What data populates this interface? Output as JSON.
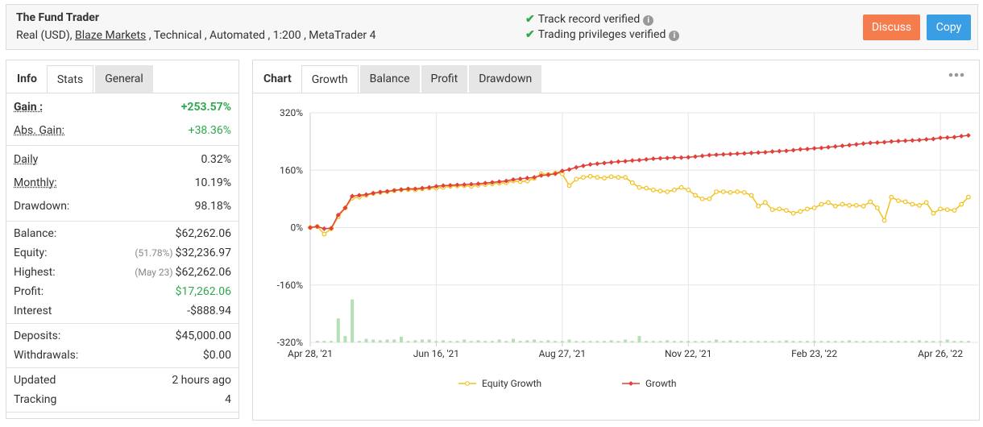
{
  "header": {
    "title": "The Fund Trader",
    "account": "Real (USD),",
    "broker": "Blaze Markets",
    "details": ", Technical , Automated , 1:200 , MetaTrader 4",
    "verified": [
      "Track record verified",
      "Trading privileges verified"
    ],
    "buttons": [
      "Discuss",
      "Copy"
    ]
  },
  "stats_panel": {
    "tabs": [
      "Info",
      "Stats",
      "General"
    ],
    "groups": [
      [
        {
          "label": "Gain :",
          "value": "+253.57%"
        },
        {
          "label": "Abs. Gain:",
          "value": "+38.36%"
        }
      ],
      [
        {
          "label": "Daily",
          "value": "0.32%"
        },
        {
          "label": "Monthly:",
          "value": "10.19%"
        },
        {
          "label": "Drawdown:",
          "value": "98.18%"
        }
      ],
      [
        {
          "label": "Balance:",
          "value": "$62,262.06"
        },
        {
          "label": "Equity:",
          "note": "(51.78%)",
          "value": "$32,236.97"
        },
        {
          "label": "Highest:",
          "note": "(May 23)",
          "value": "$62,262.06"
        },
        {
          "label": "Profit:",
          "value": "$17,262.06"
        },
        {
          "label": "Interest",
          "value": "-$888.94"
        }
      ],
      [
        {
          "label": "Deposits:",
          "value": "$45,000.00"
        },
        {
          "label": "Withdrawals:",
          "value": "$0.00"
        }
      ],
      [
        {
          "label": "Updated",
          "value": "2 hours ago"
        },
        {
          "label": "Tracking",
          "value": "4"
        }
      ]
    ]
  },
  "chart_panel": {
    "tabs": [
      "Chart",
      "Growth",
      "Balance",
      "Profit",
      "Drawdown"
    ]
  },
  "chart_data": {
    "type": "line",
    "categories": [
      "Apr 28, '21",
      null,
      null,
      null,
      null,
      null,
      null,
      null,
      null,
      null,
      null,
      null,
      null,
      null,
      null,
      null,
      null,
      null,
      "Jun 16, '21",
      null,
      null,
      null,
      null,
      null,
      null,
      null,
      null,
      null,
      null,
      null,
      null,
      null,
      null,
      null,
      null,
      null,
      "Aug 27, '21",
      null,
      null,
      null,
      null,
      null,
      null,
      null,
      null,
      null,
      null,
      null,
      null,
      null,
      null,
      null,
      null,
      null,
      "Nov 22, '21",
      null,
      null,
      null,
      null,
      null,
      null,
      null,
      null,
      null,
      null,
      null,
      null,
      null,
      null,
      null,
      null,
      null,
      "Feb 23, '22",
      null,
      null,
      null,
      null,
      null,
      null,
      null,
      null,
      null,
      null,
      null,
      null,
      null,
      null,
      null,
      null,
      null,
      "Apr 26, '22",
      null,
      null,
      null,
      null
    ],
    "series": [
      {
        "name": "Equity Growth",
        "color": "#f2c11c",
        "values": [
          0,
          3,
          -18,
          -3,
          30,
          55,
          82,
          85,
          90,
          95,
          98,
          100,
          103,
          105,
          106,
          105,
          108,
          110,
          110,
          112,
          115,
          116,
          117,
          115,
          118,
          120,
          122,
          124,
          125,
          130,
          128,
          130,
          137,
          150,
          148,
          152,
          150,
          117,
          135,
          140,
          143,
          140,
          138,
          142,
          140,
          140,
          125,
          112,
          110,
          105,
          102,
          100,
          105,
          112,
          105,
          90,
          80,
          80,
          100,
          100,
          98,
          100,
          98,
          90,
          60,
          70,
          50,
          52,
          48,
          40,
          45,
          52,
          55,
          65,
          70,
          60,
          65,
          62,
          62,
          60,
          72,
          55,
          20,
          85,
          75,
          72,
          65,
          62,
          70,
          40,
          52,
          50,
          48,
          65,
          85
        ]
      },
      {
        "name": "Growth",
        "color": "#e0413a",
        "values": [
          0,
          3,
          -3,
          -2,
          35,
          55,
          88,
          90,
          92,
          96,
          99,
          101,
          104,
          106,
          108,
          108,
          110,
          112,
          115,
          117,
          118,
          119,
          120,
          121,
          122,
          124,
          126,
          128,
          130,
          134,
          136,
          138,
          140,
          145,
          147,
          150,
          158,
          162,
          168,
          172,
          176,
          178,
          180,
          182,
          184,
          185,
          187,
          188,
          190,
          192,
          193,
          194,
          195,
          195,
          196,
          198,
          200,
          202,
          203,
          204,
          205,
          206,
          207,
          208,
          209,
          210,
          212,
          213,
          214,
          216,
          218,
          219,
          221,
          222,
          224,
          226,
          228,
          230,
          232,
          234,
          236,
          237,
          238,
          240,
          241,
          242,
          243,
          244,
          246,
          247,
          250,
          251,
          252,
          255,
          257
        ]
      }
    ],
    "bars": {
      "color": "#b5e0b5",
      "values": [
        0,
        4,
        4,
        4,
        67,
        18,
        120,
        4,
        10,
        8,
        6,
        8,
        8,
        16,
        4,
        6,
        8,
        8,
        4,
        6,
        4,
        4,
        8,
        4,
        6,
        4,
        4,
        8,
        4,
        10,
        4,
        6,
        8,
        4,
        6,
        4,
        4,
        8,
        4,
        4,
        4,
        4,
        4,
        6,
        4,
        8,
        4,
        18,
        4,
        4,
        4,
        6,
        4,
        4,
        4,
        4,
        4,
        4,
        8,
        4,
        6,
        4,
        4,
        4,
        4,
        4,
        4,
        4,
        6,
        4,
        4,
        4,
        4,
        4,
        4,
        4,
        4,
        6,
        4,
        4,
        4,
        4,
        4,
        4,
        4,
        4,
        4,
        6,
        4,
        4,
        4,
        8,
        4,
        4,
        4
      ]
    },
    "ylim": [
      -320,
      320
    ],
    "yticks": [
      {
        "value": 320,
        "label": "320%"
      },
      {
        "value": 160,
        "label": "160%"
      },
      {
        "value": 0,
        "label": "0%"
      },
      {
        "value": -160,
        "label": "-160%"
      },
      {
        "value": -320,
        "label": "-320%"
      }
    ],
    "grid": true,
    "legend": "bottom"
  }
}
